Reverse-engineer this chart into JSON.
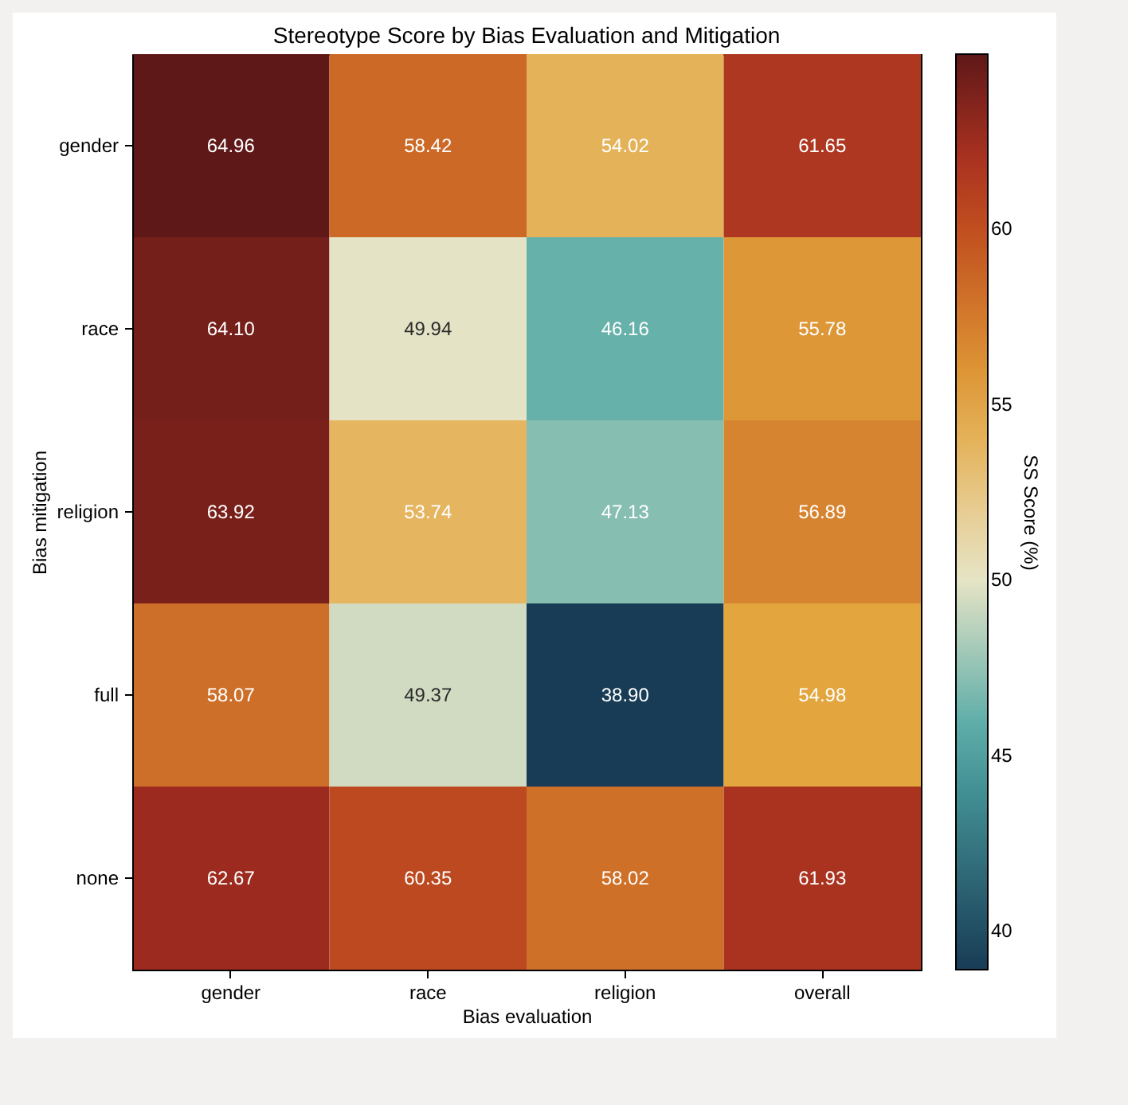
{
  "chart_data": {
    "type": "heatmap",
    "title": "Stereotype Score by Bias Evaluation and Mitigation",
    "xlabel": "Bias evaluation",
    "ylabel": "Bias mitigation",
    "clabel": "SS Score (%)",
    "categories": [
      "gender",
      "race",
      "religion",
      "overall"
    ],
    "y_categories": [
      "gender",
      "race",
      "religion",
      "full",
      "none"
    ],
    "cells": [
      [
        64.96,
        58.42,
        54.02,
        61.65
      ],
      [
        64.1,
        49.94,
        46.16,
        55.78
      ],
      [
        63.92,
        53.74,
        47.13,
        56.89
      ],
      [
        58.07,
        49.37,
        38.9,
        54.98
      ],
      [
        62.67,
        60.35,
        58.02,
        61.93
      ]
    ],
    "cell_labels": [
      [
        "64.96",
        "58.42",
        "54.02",
        "61.65"
      ],
      [
        "64.10",
        "49.94",
        "46.16",
        "55.78"
      ],
      [
        "63.92",
        "53.74",
        "47.13",
        "56.89"
      ],
      [
        "58.07",
        "49.37",
        "38.90",
        "54.98"
      ],
      [
        "62.67",
        "60.35",
        "58.02",
        "61.93"
      ]
    ],
    "clim": [
      38.9,
      64.96
    ],
    "cticks": [
      40,
      45,
      50,
      55,
      60
    ],
    "data_labels": true
  }
}
